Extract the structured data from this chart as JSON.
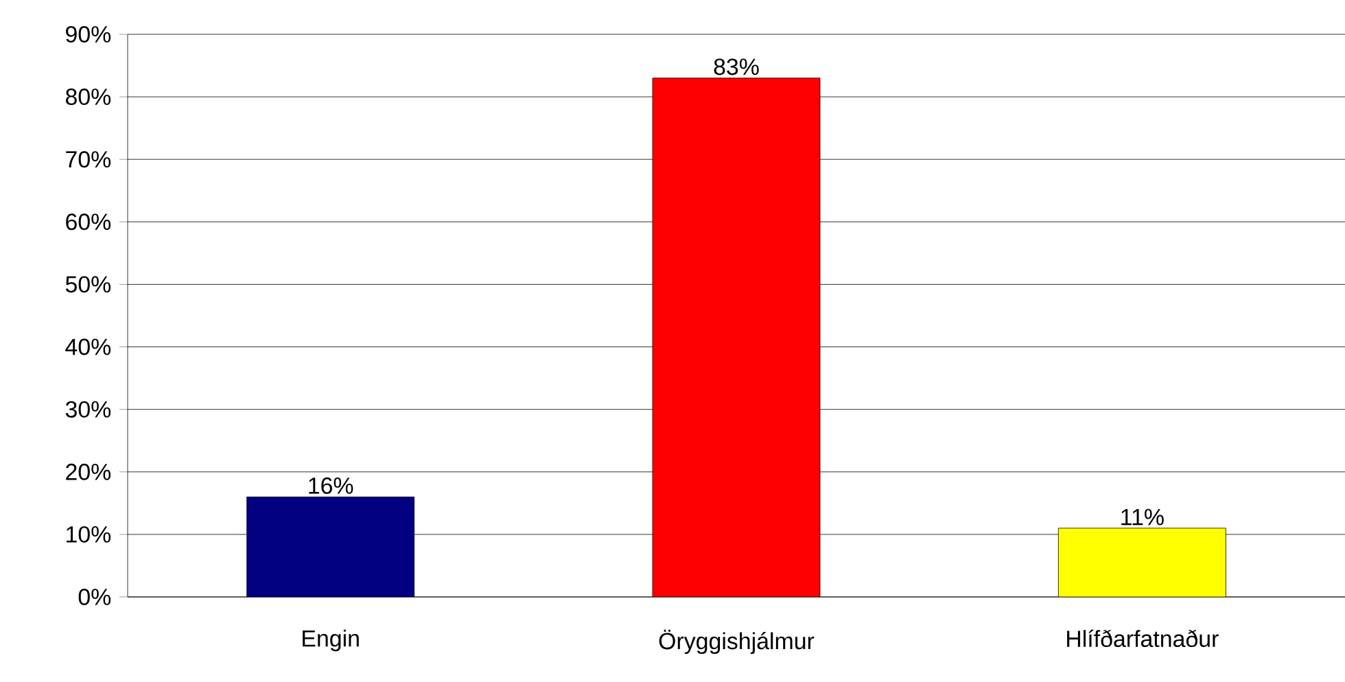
{
  "chart_data": {
    "type": "bar",
    "categories": [
      "Engin",
      "Öryggishjálmur",
      "Hlífðarfatnaður"
    ],
    "values": [
      16,
      83,
      11
    ],
    "colors": [
      "#000080",
      "#ff0000",
      "#ffff00"
    ],
    "value_labels": [
      "16%",
      "83%",
      "11%"
    ],
    "ylim": [
      0,
      90
    ],
    "yticks": [
      {
        "value": 0,
        "label": "0%"
      },
      {
        "value": 10,
        "label": "10%"
      },
      {
        "value": 20,
        "label": "20%"
      },
      {
        "value": 30,
        "label": "30%"
      },
      {
        "value": 40,
        "label": "40%"
      },
      {
        "value": 50,
        "label": "50%"
      },
      {
        "value": 60,
        "label": "60%"
      },
      {
        "value": 70,
        "label": "70%"
      },
      {
        "value": 80,
        "label": "80%"
      },
      {
        "value": 90,
        "label": "90%"
      }
    ],
    "grid": "y"
  }
}
